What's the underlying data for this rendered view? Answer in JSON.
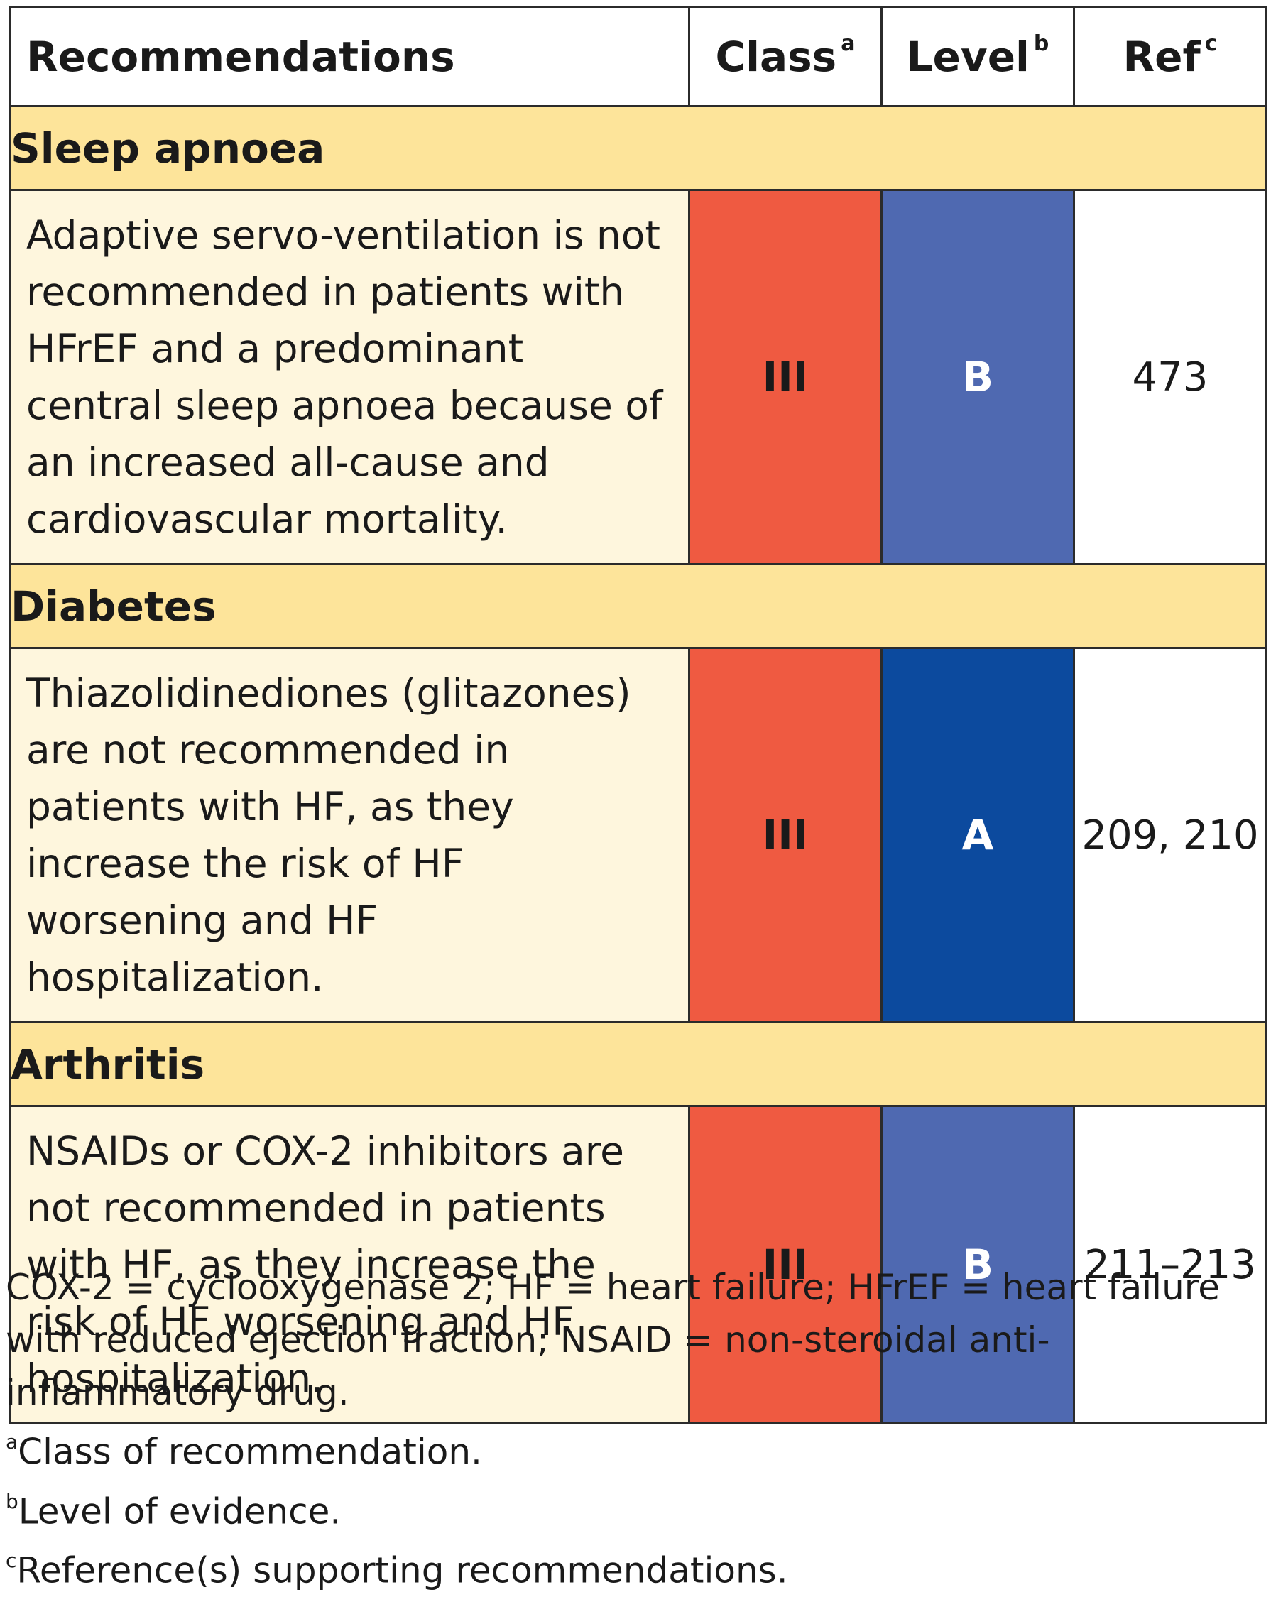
{
  "table": {
    "headers": {
      "recommendations": "Recommendations",
      "class": "Class",
      "class_sup": "a",
      "level": "Level",
      "level_sup": "b",
      "ref": "Ref",
      "ref_sup": "c"
    },
    "sections": [
      {
        "title": "Sleep apnoea",
        "recommendation": "Adaptive servo-ventilation is not recommended in patients with HFrEF and a predominant central sleep apnoea because of an increased all-cause and cardiovascular mortality.",
        "class": "III",
        "level": "B",
        "ref": "473"
      },
      {
        "title": "Diabetes",
        "recommendation": "Thiazolidinediones (glitazones) are not recommended in patients with HF, as they increase the risk of HF worsening and HF hospitalization.",
        "class": "III",
        "level": "A",
        "ref": "209, 210"
      },
      {
        "title": "Arthritis",
        "recommendation": "NSAIDs or COX-2 inhibitors are not recommended in patients with HF, as they increase the risk of HF worsening and HF hospitalization.",
        "class": "III",
        "level": "B",
        "ref": "211–213"
      }
    ]
  },
  "colors": {
    "section_header": "#fde49a",
    "recommendation_bg": "#fef6dd",
    "class_iii": "#ef5a41",
    "level_b": "#4f69b1",
    "level_a": "#0c4a9e"
  },
  "footnotes": {
    "abbreviations": "COX-2 = cyclooxygenase 2; HF = heart failure; HFrEF = heart failure with reduced ejection fraction; NSAID = non-steroidal anti-inflammatory drug.",
    "a_mark": "a",
    "a_text": "Class of recommendation.",
    "b_mark": "b",
    "b_text": "Level of evidence.",
    "c_mark": "c",
    "c_text": "Reference(s) supporting recommendations."
  }
}
